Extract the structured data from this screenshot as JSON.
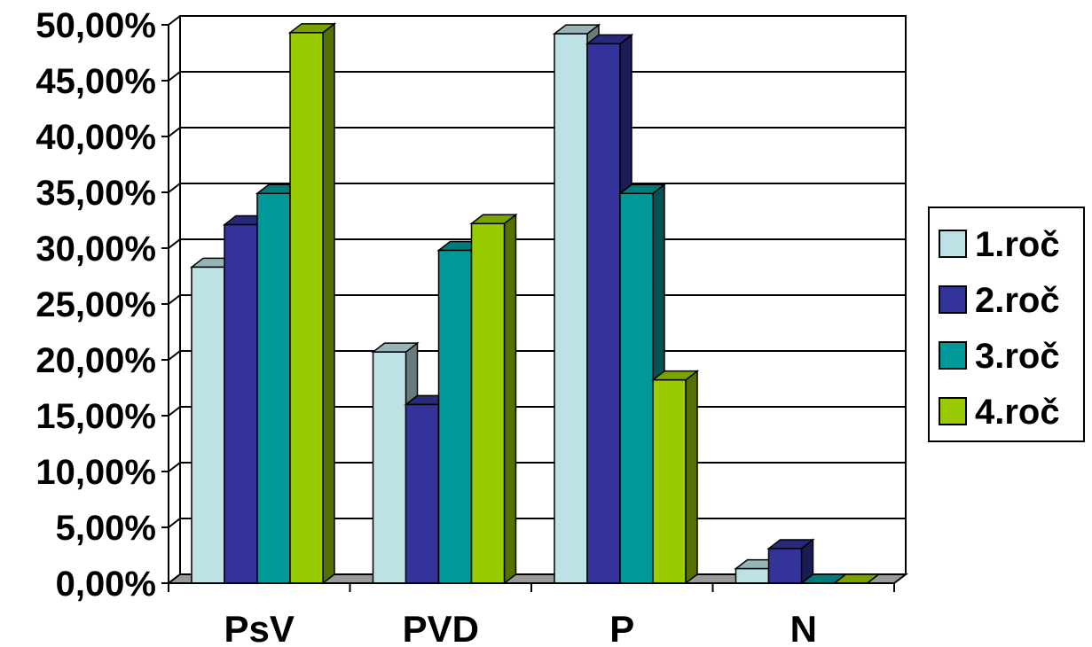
{
  "chart_data": {
    "type": "bar",
    "categories": [
      "PsV",
      "PVD",
      "P",
      "N"
    ],
    "series": [
      {
        "name": "1.roč",
        "values": [
          28.3,
          20.7,
          49.2,
          1.3
        ],
        "color": "#bde1e5"
      },
      {
        "name": "2.roč",
        "values": [
          32.1,
          16.0,
          48.3,
          3.1
        ],
        "color": "#333399"
      },
      {
        "name": "3.roč",
        "values": [
          34.9,
          29.8,
          34.9,
          0
        ],
        "color": "#009999"
      },
      {
        "name": "4.roč",
        "values": [
          49.3,
          32.2,
          18.2,
          0
        ],
        "color": "#99cc00"
      }
    ],
    "y_ticks": [
      "0,00%",
      "5,00%",
      "10,00%",
      "15,00%",
      "20,00%",
      "25,00%",
      "30,00%",
      "35,00%",
      "40,00%",
      "45,00%",
      "50,00%"
    ],
    "ylim": [
      0,
      50
    ],
    "grid": true,
    "legend_position": "right",
    "title": "",
    "xlabel": "",
    "ylabel": ""
  }
}
